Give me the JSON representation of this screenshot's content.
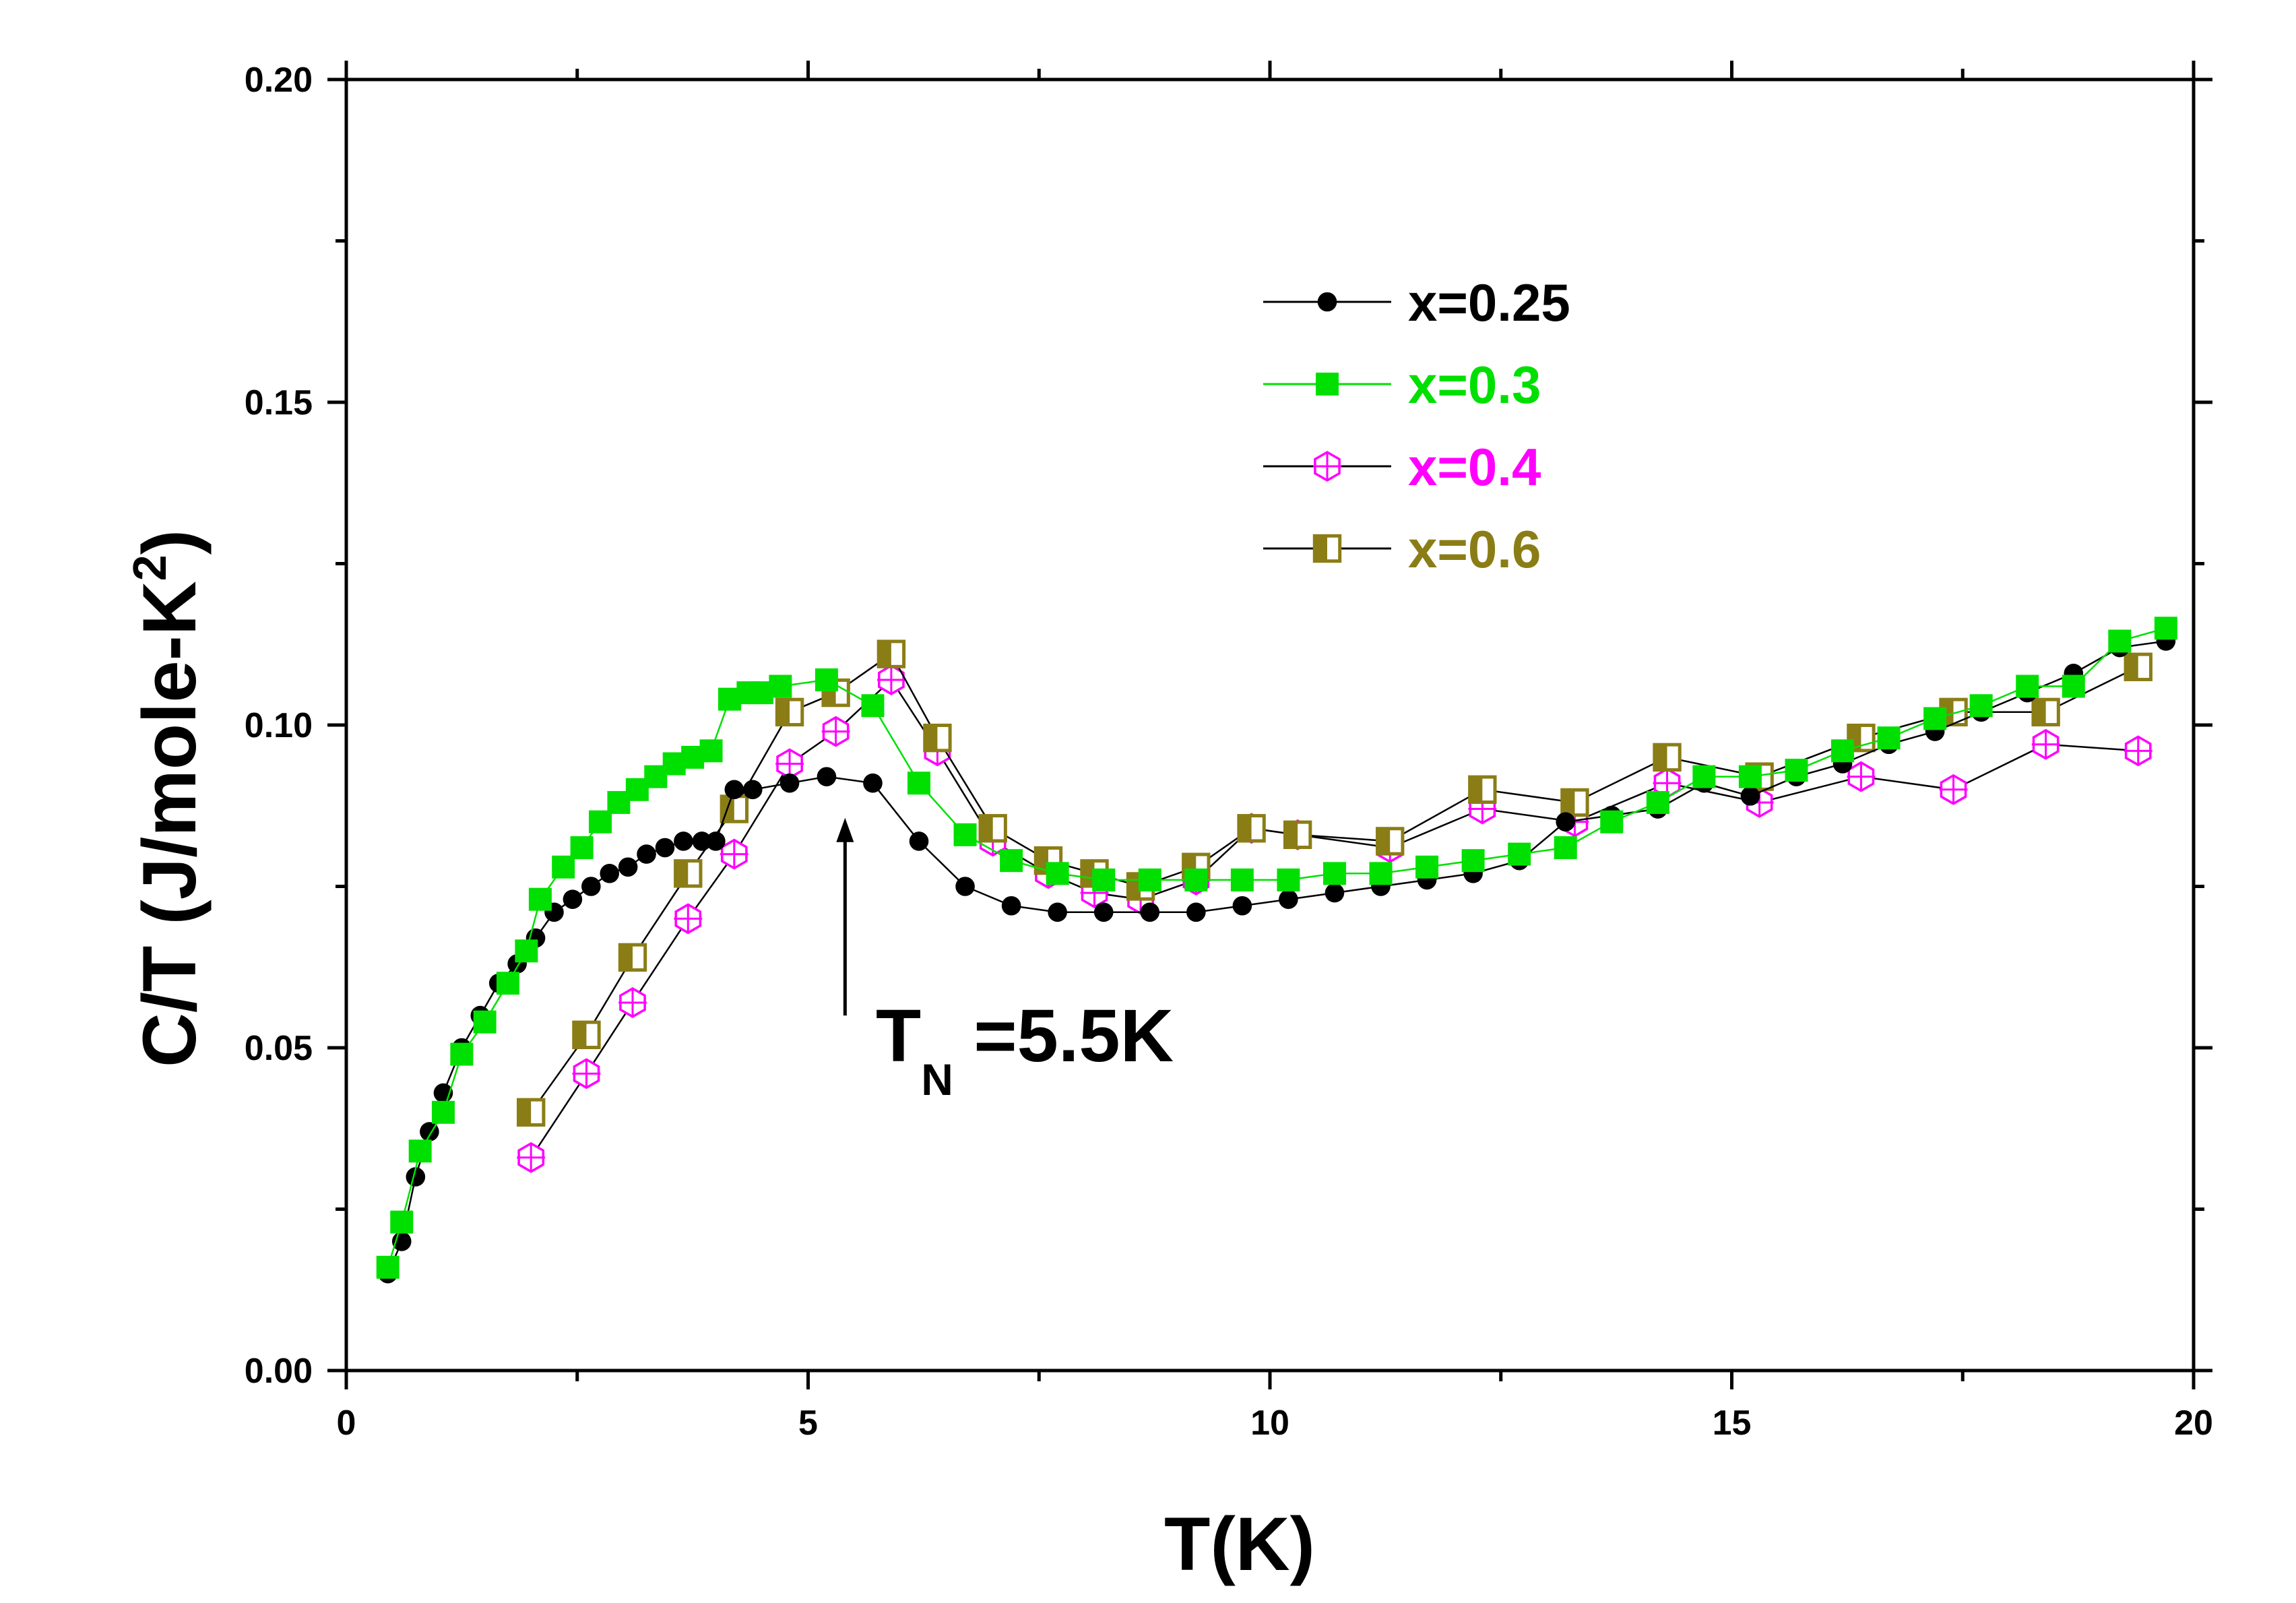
{
  "chart_data": {
    "type": "line",
    "title": "",
    "xlabel": "T(K)",
    "ylabel_main": "C/T (J/mole-K",
    "ylabel_sup": "2",
    "ylabel_close": ")",
    "xlim": [
      0,
      20
    ],
    "ylim": [
      0,
      0.2
    ],
    "xticks": [
      0,
      5,
      10,
      15,
      20
    ],
    "xtick_labels": [
      "0",
      "5",
      "10",
      "15",
      "20"
    ],
    "yticks": [
      0,
      0.05,
      0.1,
      0.15,
      0.2
    ],
    "ytick_labels": [
      "0.00",
      "0.05",
      "0.10",
      "0.15",
      "0.20"
    ],
    "annotation": {
      "text_main": "T",
      "text_sub": "N",
      "text_rest": " =5.5K",
      "arrow_x": 5.4,
      "arrow_y_from": 0.055,
      "arrow_y_to": 0.085
    },
    "legend_position": "upper-right",
    "series": [
      {
        "name": "x=0.25",
        "color": "#000000",
        "line_color": "#000000",
        "marker": "circle",
        "x": [
          0.45,
          0.6,
          0.75,
          0.9,
          1.05,
          1.25,
          1.45,
          1.65,
          1.85,
          2.05,
          2.25,
          2.45,
          2.65,
          2.85,
          3.05,
          3.25,
          3.45,
          3.65,
          3.85,
          4.0,
          4.2,
          4.4,
          4.8,
          5.2,
          5.7,
          6.2,
          6.7,
          7.2,
          7.7,
          8.2,
          8.7,
          9.2,
          9.7,
          10.2,
          10.7,
          11.2,
          11.7,
          12.2,
          12.7,
          13.2,
          13.7,
          14.2,
          14.7,
          15.2,
          15.7,
          16.2,
          16.7,
          17.2,
          17.7,
          18.2,
          18.7,
          19.2,
          19.7
        ],
        "y": [
          0.015,
          0.02,
          0.03,
          0.037,
          0.043,
          0.05,
          0.055,
          0.06,
          0.063,
          0.067,
          0.071,
          0.073,
          0.075,
          0.077,
          0.078,
          0.08,
          0.081,
          0.082,
          0.082,
          0.082,
          0.09,
          0.09,
          0.091,
          0.092,
          0.091,
          0.082,
          0.075,
          0.072,
          0.071,
          0.071,
          0.071,
          0.071,
          0.072,
          0.073,
          0.074,
          0.075,
          0.076,
          0.077,
          0.079,
          0.085,
          0.086,
          0.087,
          0.091,
          0.089,
          0.092,
          0.094,
          0.097,
          0.099,
          0.102,
          0.105,
          0.108,
          0.112,
          0.113
        ]
      },
      {
        "name": "x=0.3",
        "color": "#00e000",
        "line_color": "#00e000",
        "marker": "square",
        "x": [
          0.45,
          0.6,
          0.8,
          1.05,
          1.25,
          1.5,
          1.75,
          1.95,
          2.1,
          2.35,
          2.55,
          2.75,
          2.95,
          3.15,
          3.35,
          3.55,
          3.75,
          3.95,
          4.15,
          4.35,
          4.5,
          4.7,
          5.2,
          5.7,
          6.2,
          6.7,
          7.2,
          7.7,
          8.2,
          8.7,
          9.2,
          9.7,
          10.2,
          10.7,
          11.2,
          11.7,
          12.2,
          12.7,
          13.2,
          13.7,
          14.2,
          14.7,
          15.2,
          15.7,
          16.2,
          16.7,
          17.2,
          17.7,
          18.2,
          18.7,
          19.2,
          19.7
        ],
        "y": [
          0.016,
          0.023,
          0.034,
          0.04,
          0.049,
          0.054,
          0.06,
          0.065,
          0.073,
          0.078,
          0.081,
          0.085,
          0.088,
          0.09,
          0.092,
          0.094,
          0.095,
          0.096,
          0.104,
          0.105,
          0.105,
          0.106,
          0.107,
          0.103,
          0.091,
          0.083,
          0.079,
          0.077,
          0.076,
          0.076,
          0.076,
          0.076,
          0.076,
          0.077,
          0.077,
          0.078,
          0.079,
          0.08,
          0.081,
          0.085,
          0.088,
          0.092,
          0.092,
          0.093,
          0.096,
          0.098,
          0.101,
          0.103,
          0.106,
          0.106,
          0.113,
          0.115
        ]
      },
      {
        "name": "x=0.4",
        "color": "#ff00ff",
        "line_color": "#000000",
        "marker": "crossed-hexagon",
        "x": [
          2.0,
          2.6,
          3.1,
          3.7,
          4.2,
          4.8,
          5.3,
          5.9,
          6.4,
          7.0,
          7.6,
          8.1,
          8.6,
          9.2,
          9.8,
          10.3,
          11.3,
          12.3,
          13.3,
          14.3,
          15.3,
          16.4,
          17.4,
          18.4,
          19.4
        ],
        "y": [
          0.033,
          0.046,
          0.057,
          0.07,
          0.08,
          0.094,
          0.099,
          0.107,
          0.096,
          0.082,
          0.077,
          0.074,
          0.073,
          0.076,
          0.084,
          0.083,
          0.081,
          0.087,
          0.085,
          0.091,
          0.088,
          0.092,
          0.09,
          0.097,
          0.096
        ]
      },
      {
        "name": "x=0.6",
        "color": "#8b7d16",
        "line_color": "#000000",
        "marker": "half-square",
        "x": [
          2.0,
          2.6,
          3.1,
          3.7,
          4.2,
          4.8,
          5.3,
          5.9,
          6.4,
          7.0,
          7.6,
          8.1,
          8.6,
          9.2,
          9.8,
          10.3,
          11.3,
          12.3,
          13.3,
          14.3,
          15.3,
          16.4,
          17.4,
          18.4,
          19.4
        ],
        "y": [
          0.04,
          0.052,
          0.064,
          0.077,
          0.087,
          0.102,
          0.105,
          0.111,
          0.098,
          0.084,
          0.079,
          0.077,
          0.075,
          0.078,
          0.084,
          0.083,
          0.082,
          0.09,
          0.088,
          0.095,
          0.092,
          0.098,
          0.102,
          0.102,
          0.109
        ]
      }
    ]
  }
}
